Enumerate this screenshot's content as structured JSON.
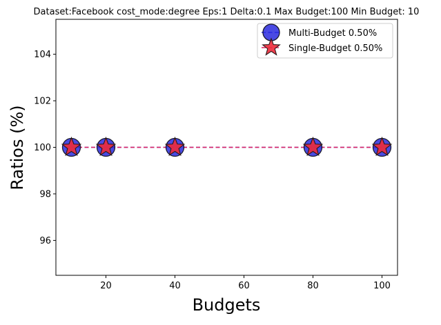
{
  "chart_data": {
    "type": "line",
    "title": "Dataset:Facebook cost_mode:degree Eps:1 Delta:0.1 Max Budget:100 Min Budget: 10",
    "xlabel": "Budgets",
    "ylabel": "Ratios (%)",
    "xlim": [
      5.5,
      104.5
    ],
    "ylim": [
      94.5,
      105.5
    ],
    "xticks": [
      20,
      40,
      60,
      80,
      100
    ],
    "yticks": [
      96,
      98,
      100,
      102,
      104
    ],
    "x": [
      10,
      20,
      40,
      80,
      100
    ],
    "series": [
      {
        "name": "Multi-Budget 0.50%",
        "marker": "circle",
        "color": "#2222dd",
        "line_color": "#3a3aff",
        "values": [
          100,
          100,
          100,
          100,
          100
        ]
      },
      {
        "name": "Single-Budget 0.50%",
        "marker": "star",
        "color": "#ee2a3a",
        "line_color": "#e0245e",
        "values": [
          100,
          100,
          100,
          100,
          100
        ]
      }
    ],
    "legend_position": "top-right",
    "grid": false
  }
}
